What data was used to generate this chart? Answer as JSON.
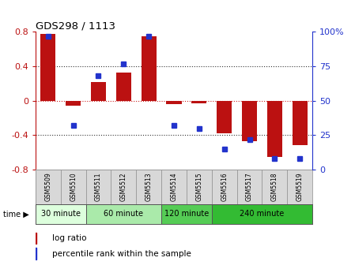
{
  "title": "GDS298 / 1113",
  "samples": [
    "GSM5509",
    "GSM5510",
    "GSM5511",
    "GSM5512",
    "GSM5513",
    "GSM5514",
    "GSM5515",
    "GSM5516",
    "GSM5517",
    "GSM5518",
    "GSM5519"
  ],
  "log_ratio": [
    0.78,
    -0.06,
    0.22,
    0.33,
    0.75,
    -0.04,
    -0.03,
    -0.38,
    -0.47,
    -0.65,
    -0.52
  ],
  "percentile": [
    97,
    32,
    68,
    77,
    97,
    32,
    30,
    15,
    22,
    8,
    8
  ],
  "ylim": [
    -0.8,
    0.8
  ],
  "bar_color": "#bb1111",
  "dot_color": "#2233cc",
  "grid_color": "#333333",
  "zero_line_color": "#cc2222",
  "groups": [
    {
      "label": "30 minute",
      "start": 0,
      "end": 2,
      "color": "#ddffdd"
    },
    {
      "label": "60 minute",
      "start": 2,
      "end": 5,
      "color": "#aaeaaa"
    },
    {
      "label": "120 minute",
      "start": 5,
      "end": 7,
      "color": "#55cc55"
    },
    {
      "label": "240 minute",
      "start": 7,
      "end": 11,
      "color": "#33bb33"
    }
  ],
  "right_yticks": [
    0,
    25,
    50,
    75,
    100
  ],
  "right_ylabels": [
    "0",
    "25",
    "50",
    "75",
    "100%"
  ],
  "left_yticks": [
    -0.8,
    -0.4,
    0.0,
    0.4,
    0.8
  ],
  "left_ylabels": [
    "-0.8",
    "-0.4",
    "0",
    "0.4",
    "0.8"
  ],
  "legend_log_ratio": "log ratio",
  "legend_percentile": "percentile rank within the sample",
  "time_label": "time"
}
